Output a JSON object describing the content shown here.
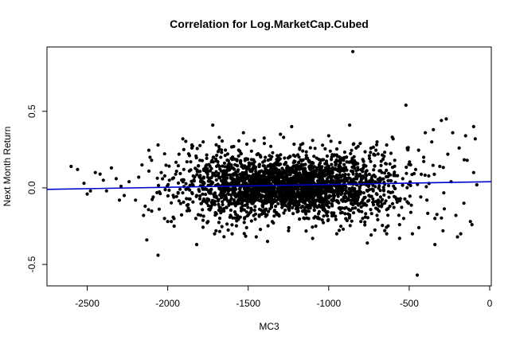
{
  "chart_data": {
    "type": "scatter",
    "title": "Correlation for Log.MarketCap.Cubed",
    "xlabel": "MC3",
    "ylabel": "Next Month Return",
    "xlim": [
      -2750,
      10
    ],
    "ylim": [
      -0.64,
      0.92
    ],
    "x_ticks": [
      -2500,
      -2000,
      -1500,
      -1000,
      -500,
      0
    ],
    "x_tick_labels": [
      "-2500",
      "-2000",
      "-1500",
      "-1000",
      "-500",
      "0"
    ],
    "y_ticks": [
      -0.5,
      0.0,
      0.5
    ],
    "y_tick_labels": [
      "-0.5",
      "0.0",
      "0.5"
    ],
    "point_color": "#000000",
    "grid": false,
    "legend": "none",
    "series": [
      {
        "kind": "points",
        "points": [
          [
            -850,
            0.89
          ],
          [
            -520,
            0.54
          ],
          [
            -270,
            0.45
          ],
          [
            -450,
            -0.57
          ],
          [
            -2060,
            -0.44
          ],
          [
            -1720,
            0.41
          ],
          [
            -870,
            0.41
          ],
          [
            -1230,
            0.4
          ],
          [
            -2130,
            -0.34
          ],
          [
            -100,
            0.4
          ],
          [
            -180,
            -0.3
          ],
          [
            -300,
            0.44
          ],
          [
            -560,
            -0.33
          ],
          [
            -640,
            -0.3
          ],
          [
            -760,
            -0.36
          ],
          [
            -1380,
            -0.35
          ],
          [
            -1820,
            -0.37
          ],
          [
            -1680,
            0.33
          ],
          [
            -1530,
            0.36
          ],
          [
            -1000,
            0.34
          ],
          [
            -950,
            -0.3
          ],
          [
            -400,
            0.36
          ],
          [
            -340,
            -0.37
          ],
          [
            -2600,
            0.14
          ],
          [
            -2560,
            0.12
          ],
          [
            -2520,
            0.03
          ],
          [
            -2500,
            -0.04
          ],
          [
            -2450,
            0.1
          ],
          [
            -2400,
            0.05
          ],
          [
            -2380,
            -0.02
          ],
          [
            -2350,
            0.13
          ],
          [
            -2320,
            0.06
          ],
          [
            -2290,
            0.01
          ],
          [
            -2270,
            -0.05
          ],
          [
            -2240,
            0.04
          ],
          [
            -2200,
            -0.08
          ],
          [
            -2180,
            0.07
          ],
          [
            -2160,
            0.15
          ],
          [
            -2140,
            -0.12
          ],
          [
            -2110,
            0.2
          ],
          [
            -2090,
            -0.06
          ],
          [
            -2060,
            0.28
          ],
          [
            -2040,
            0.1
          ],
          [
            -2020,
            -0.2
          ],
          [
            -1990,
            0.05
          ],
          [
            -1960,
            -0.25
          ],
          [
            -1930,
            0.22
          ],
          [
            -1900,
            0.12
          ],
          [
            -1880,
            -0.15
          ],
          [
            -1850,
            0.26
          ],
          [
            -1820,
            -0.05
          ],
          [
            -1800,
            0.18
          ],
          [
            -1780,
            0.3
          ],
          [
            -1750,
            -0.22
          ],
          [
            -1720,
            0.08
          ],
          [
            -1700,
            -0.28
          ],
          [
            -1670,
            0.2
          ],
          [
            -1640,
            0.02
          ],
          [
            -1610,
            -0.18
          ],
          [
            -1590,
            0.27
          ],
          [
            -1560,
            -0.1
          ],
          [
            -1540,
            0.15
          ],
          [
            -1510,
            -0.26
          ],
          [
            -1480,
            0.24
          ],
          [
            -1460,
            0.06
          ],
          [
            -1430,
            -0.14
          ],
          [
            -1400,
            0.29
          ],
          [
            -1380,
            0.1
          ],
          [
            -1350,
            -0.22
          ],
          [
            -1320,
            0.21
          ],
          [
            -1300,
            -0.03
          ],
          [
            -1280,
            0.33
          ],
          [
            -1250,
            -0.28
          ],
          [
            -1220,
            0.14
          ],
          [
            -1200,
            -0.12
          ],
          [
            -1180,
            0.26
          ],
          [
            -1150,
            -0.2
          ],
          [
            -1120,
            0.08
          ],
          [
            -1100,
            0.31
          ],
          [
            -1080,
            -0.25
          ],
          [
            -1050,
            0.18
          ],
          [
            -1020,
            -0.06
          ],
          [
            -990,
            0.24
          ],
          [
            -970,
            -0.18
          ],
          [
            -940,
            0.12
          ],
          [
            -910,
            -0.27
          ],
          [
            -890,
            0.2
          ],
          [
            -860,
            -0.1
          ],
          [
            -830,
            0.26
          ],
          [
            -800,
            -0.22
          ],
          [
            -780,
            0.14
          ],
          [
            -750,
            -0.05
          ],
          [
            -720,
            0.22
          ],
          [
            -700,
            -0.18
          ],
          [
            -670,
            0.1
          ],
          [
            -640,
            0.28
          ],
          [
            -620,
            -0.12
          ],
          [
            -590,
            0.18
          ],
          [
            -560,
            -0.24
          ],
          [
            -540,
            0.06
          ],
          [
            -510,
            0.25
          ],
          [
            -490,
            -0.16
          ],
          [
            -460,
            0.12
          ],
          [
            -440,
            -0.26
          ],
          [
            -410,
            0.2
          ],
          [
            -390,
            -0.08
          ],
          [
            -360,
            0.3
          ],
          [
            -340,
            -0.2
          ],
          [
            -310,
            0.14
          ],
          [
            -290,
            -0.28
          ],
          [
            -260,
            0.22
          ],
          [
            -240,
            0.04
          ],
          [
            -210,
            -0.18
          ],
          [
            -190,
            0.26
          ],
          [
            -160,
            -0.1
          ],
          [
            -140,
            0.18
          ],
          [
            -120,
            -0.22
          ],
          [
            -100,
            0.1
          ],
          [
            -80,
            0.02
          ],
          [
            -90,
            0.32
          ],
          [
            -110,
            -0.24
          ],
          [
            -150,
            0.34
          ],
          [
            -200,
            -0.32
          ],
          [
            -230,
            0.36
          ],
          [
            -350,
            0.38
          ],
          [
            -480,
            -0.3
          ],
          [
            -600,
            0.32
          ],
          [
            -700,
            0.3
          ],
          [
            -1900,
            0.25
          ],
          [
            -2000,
            -0.22
          ],
          [
            -2150,
            -0.18
          ],
          [
            -1300,
            0.35
          ],
          [
            -1100,
            -0.33
          ],
          [
            -1450,
            -0.32
          ],
          [
            -1600,
            -0.3
          ],
          [
            -1850,
            0.28
          ],
          [
            -2100,
            0.18
          ],
          [
            -2300,
            -0.08
          ],
          [
            -2420,
            0.09
          ],
          [
            -2480,
            -0.02
          ]
        ]
      },
      {
        "kind": "regression-line",
        "color": "#0000cc",
        "x": [
          -2750,
          10
        ],
        "y": [
          -0.01,
          0.04
        ]
      }
    ]
  }
}
